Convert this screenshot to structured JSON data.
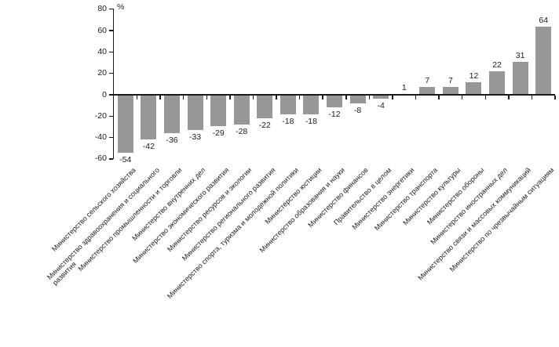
{
  "chart_data": {
    "type": "bar",
    "title": "",
    "unit_label": "%",
    "xlabel": "",
    "ylabel": "%",
    "ylim": [
      -60,
      80
    ],
    "ytick_interval": 20,
    "yticks": [
      80,
      60,
      40,
      20,
      0,
      -20,
      -40,
      -60
    ],
    "grid": false,
    "legend": "none",
    "bar_color": "#979797",
    "axis_color": "#1a1a1a",
    "value_labels_position": "outside-end",
    "category_label_rotation_deg": 45,
    "categories": [
      "Министерство сельского хозяйства",
      "Министерство здравоохранения и социального\nразвития",
      "Министерство промышленности и торговли",
      "Министерство внутренних дел",
      "Министерство экономического развития",
      "Министерство ресурсов и экологии",
      "Министерство регионального развития",
      "Министерство спорта, туризма и молодежной политики",
      "Министерство юстиции",
      "Министерство образования и науки",
      "Министерство финансов",
      "Правительство в целом",
      "Министерство энергетики",
      "Министерство транспорта",
      "Министерство культуры",
      "Министерство обороны",
      "Министерство иностранных дел",
      "Министерство связи и массовых коммуникаций",
      "Министерство по чрезвычайным ситуациям"
    ],
    "values": [
      -54,
      -42,
      -36,
      -33,
      -29,
      -28,
      -22,
      -18,
      -18,
      -12,
      -8,
      -4,
      1,
      7,
      7,
      12,
      22,
      31,
      64
    ]
  }
}
